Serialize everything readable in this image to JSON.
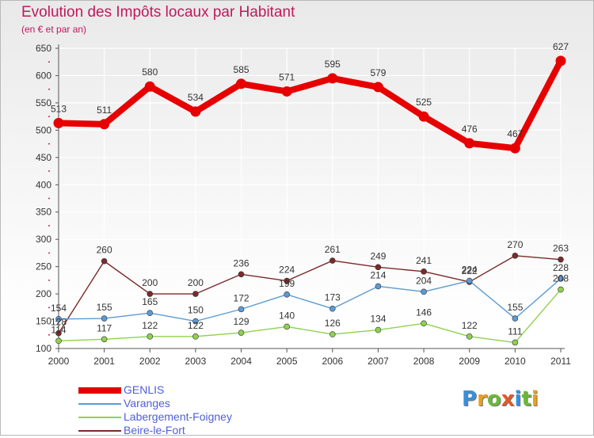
{
  "title": "Evolution des Impôts locaux par Habitant",
  "subtitle": "(en € et par an)",
  "logo_text": "Proxiti",
  "colors": {
    "title": "#c2185b",
    "legend_text": "#4f5fd6",
    "axis": "#555555",
    "grid": "#ffffff"
  },
  "chart_data": {
    "type": "line",
    "title": "Evolution des Impôts locaux par Habitant",
    "subtitle": "(en € et par an)",
    "xlabel": "",
    "ylabel": "",
    "x": [
      "2000",
      "2001",
      "2002",
      "2003",
      "2004",
      "2005",
      "2006",
      "2007",
      "2008",
      "2009",
      "2010",
      "2011"
    ],
    "ylim": [
      100,
      650
    ],
    "yticks": [
      100,
      150,
      200,
      250,
      300,
      350,
      400,
      450,
      500,
      550,
      600,
      650
    ],
    "grid": true,
    "legend_position": "bottom-left",
    "series": [
      {
        "name": "GENLIS",
        "color": "#e60000",
        "values": [
          513,
          511,
          580,
          534,
          585,
          571,
          595,
          579,
          525,
          476,
          467,
          627
        ]
      },
      {
        "name": "Varanges",
        "color": "#5b9bd5",
        "values": [
          154,
          155,
          165,
          150,
          172,
          199,
          173,
          214,
          204,
          224,
          155,
          228
        ]
      },
      {
        "name": "Labergement-Foigney",
        "color": "#8fd14f",
        "values": [
          114,
          117,
          122,
          122,
          129,
          140,
          126,
          134,
          146,
          122,
          111,
          208
        ]
      },
      {
        "name": "Beire-le-Fort",
        "color": "#7b2a2a",
        "values": [
          128,
          260,
          200,
          200,
          236,
          224,
          261,
          249,
          241,
          222,
          270,
          263
        ]
      }
    ]
  }
}
